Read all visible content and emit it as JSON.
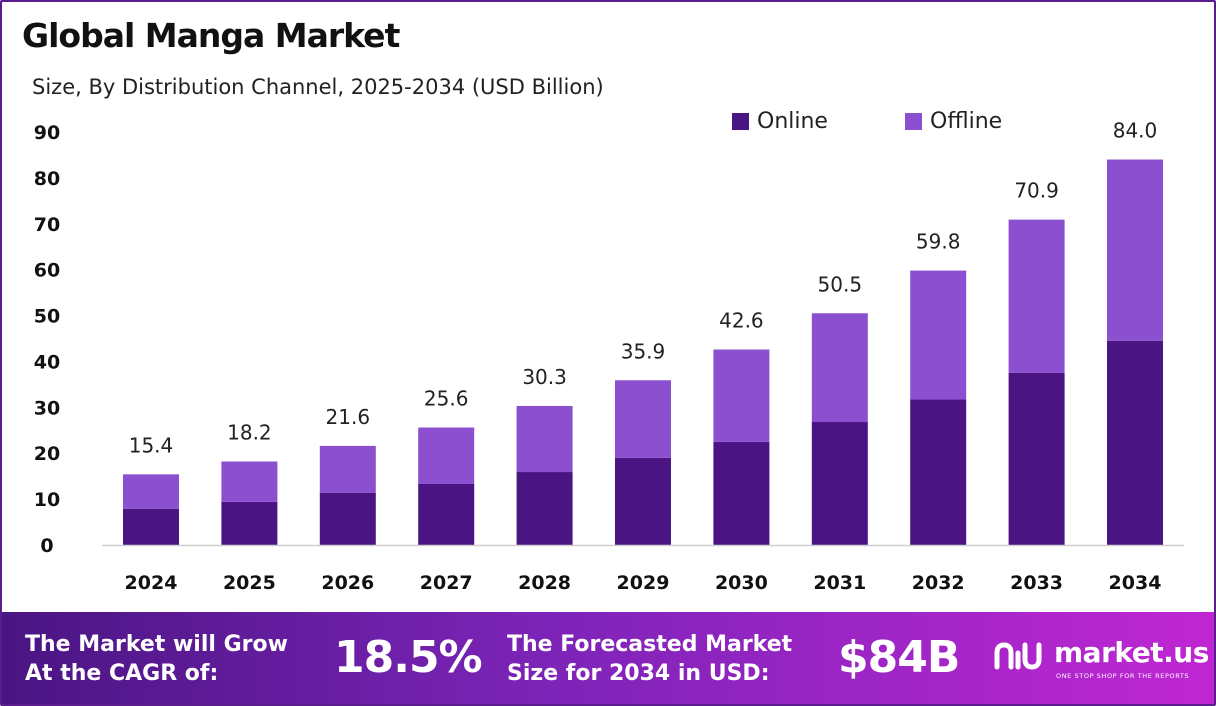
{
  "title": "Global Manga Market",
  "subtitle": "Size, By Distribution Channel, 2025-2034 (USD Billion)",
  "colors": {
    "online": "#4a1483",
    "offline": "#8b4fd0",
    "border": "#5a1d8c"
  },
  "chart_data": {
    "type": "bar",
    "stacked": true,
    "categories": [
      "2024",
      "2025",
      "2026",
      "2027",
      "2028",
      "2029",
      "2030",
      "2031",
      "2032",
      "2033",
      "2034"
    ],
    "series": [
      {
        "name": "Online",
        "color": "#4a1483",
        "values": [
          7.9,
          9.4,
          11.4,
          13.3,
          15.9,
          19.0,
          22.5,
          26.8,
          31.7,
          37.5,
          44.5
        ]
      },
      {
        "name": "Offline",
        "color": "#8b4fd0",
        "values": [
          7.5,
          8.8,
          10.2,
          12.3,
          14.4,
          16.9,
          20.1,
          23.7,
          28.1,
          33.4,
          39.5
        ]
      }
    ],
    "totals": [
      15.4,
      18.2,
      21.6,
      25.6,
      30.3,
      35.9,
      42.6,
      50.5,
      59.8,
      70.9,
      84.0
    ],
    "total_labels": [
      "15.4",
      "18.2",
      "21.6",
      "25.6",
      "30.3",
      "35.9",
      "42.6",
      "50.5",
      "59.8",
      "70.9",
      "84.0"
    ],
    "yticks": [
      0,
      10,
      20,
      30,
      40,
      50,
      60,
      70,
      80,
      90
    ],
    "ylim": [
      0,
      90
    ],
    "grid": false,
    "legend_position": "top-right"
  },
  "footer": {
    "cagr_label_line1": "The Market will Grow",
    "cagr_label_line2": "At the CAGR of:",
    "cagr_value": "18.5%",
    "forecast_label_line1": "The Forecasted Market",
    "forecast_label_line2": "Size for 2034 in USD:",
    "forecast_value": "$84B",
    "brand_name": "market.us",
    "brand_tagline": "ONE STOP SHOP FOR THE REPORTS"
  }
}
